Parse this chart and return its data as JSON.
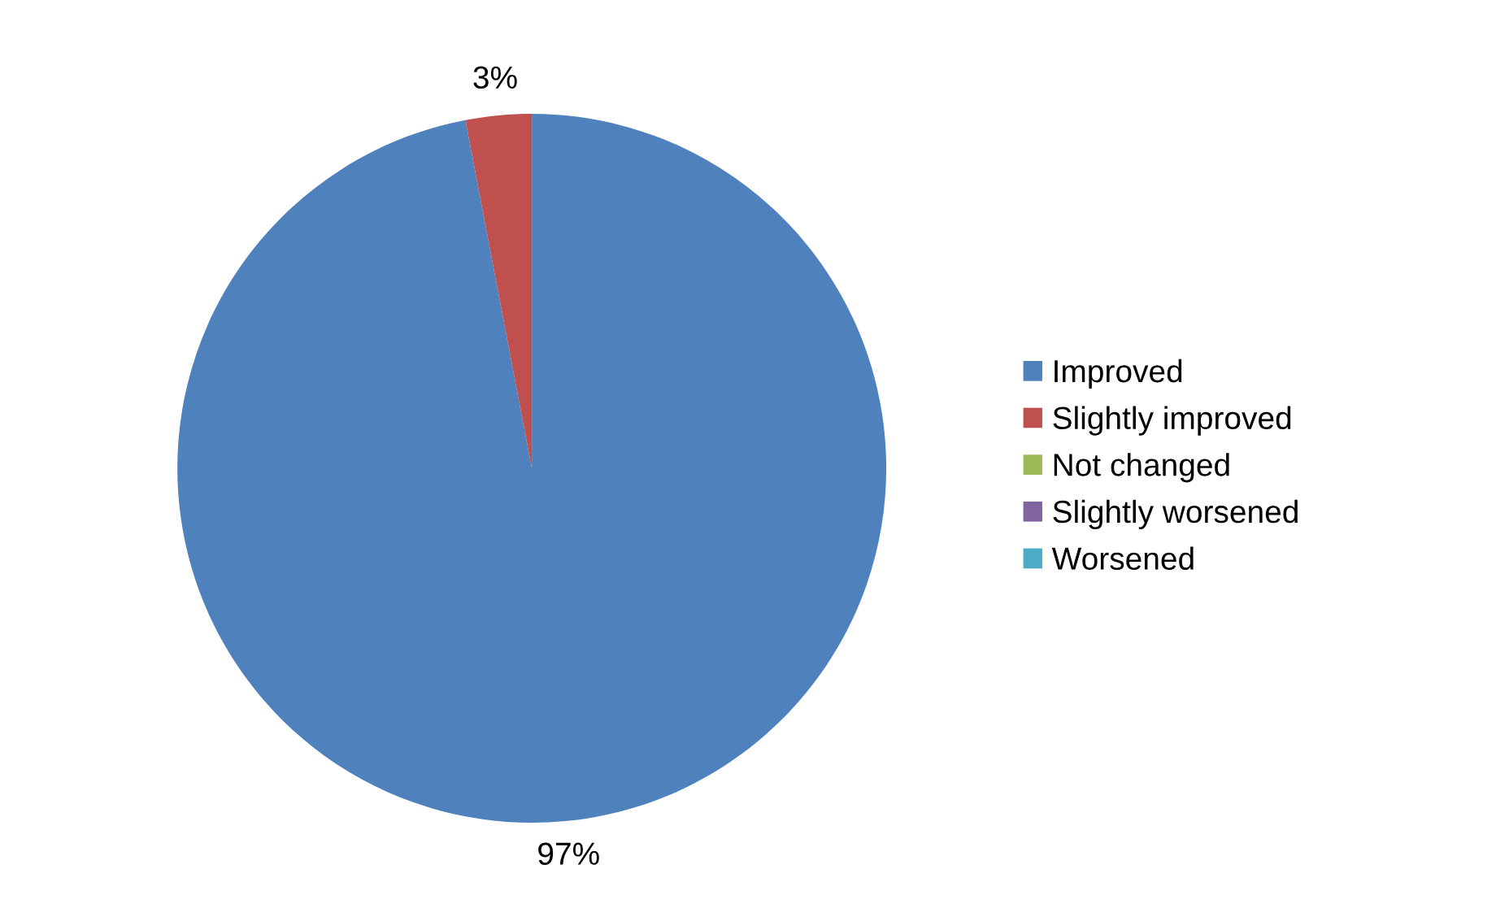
{
  "chart_data": {
    "type": "pie",
    "categories": [
      "Improved",
      "Slightly improved",
      "Not changed",
      "Slightly worsened",
      "Worsened"
    ],
    "values": [
      97,
      3,
      0,
      0,
      0
    ],
    "value_labels": [
      "97%",
      "3%",
      null,
      null,
      null
    ],
    "colors": [
      "#4f81bd",
      "#c0504d",
      "#9bbb59",
      "#8064a2",
      "#4bacc6"
    ],
    "legend": "right"
  }
}
